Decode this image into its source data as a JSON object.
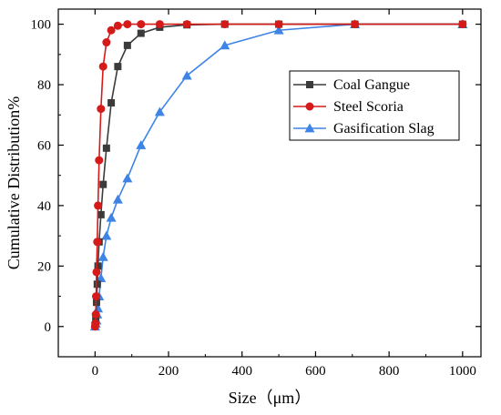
{
  "chart_data": {
    "type": "line",
    "title": "",
    "xlabel": "Size（μm）",
    "ylabel": "Cumulative Distribution%",
    "xlim": [
      -100,
      1050
    ],
    "ylim": [
      -10,
      105
    ],
    "xticks": [
      0,
      200,
      400,
      600,
      800,
      1000
    ],
    "yticks": [
      0,
      20,
      40,
      60,
      80,
      100
    ],
    "xtick_labels": [
      "0",
      "200",
      "400",
      "600",
      "800",
      "1000"
    ],
    "ytick_labels": [
      "0",
      "20",
      "40",
      "60",
      "80",
      "100"
    ],
    "grid": false,
    "legend": {
      "placement": "right",
      "entries": [
        "Coal Gangue",
        "Steel Scoria",
        "Gasification Slag"
      ]
    },
    "series": [
      {
        "name": "Coal Gangue",
        "color": "#3b3b3b",
        "marker": "square",
        "x": [
          0,
          2,
          4,
          6,
          8,
          11,
          16,
          22,
          31,
          44,
          62,
          88,
          125,
          176,
          250,
          353,
          500,
          707,
          1000
        ],
        "y": [
          0.5,
          3,
          8,
          14,
          20,
          28,
          37,
          47,
          59,
          74,
          86,
          93,
          97,
          99,
          99.8,
          100,
          100,
          100,
          100
        ]
      },
      {
        "name": "Steel Scoria",
        "color": "#d51a1a",
        "marker": "circle",
        "x": [
          0,
          1,
          2,
          3,
          4,
          6,
          8,
          11,
          16,
          22,
          31,
          44,
          62,
          88,
          125,
          176,
          250,
          353,
          500,
          707,
          1000
        ],
        "y": [
          0,
          1,
          4,
          10,
          18,
          28,
          40,
          55,
          72,
          86,
          94,
          98,
          99.5,
          100,
          100,
          100,
          100,
          100,
          100,
          100,
          100
        ]
      },
      {
        "name": "Gasification Slag",
        "color": "#3d84e6",
        "marker": "triangle",
        "x": [
          0,
          2,
          4,
          6,
          8,
          11,
          16,
          22,
          31,
          44,
          62,
          88,
          125,
          176,
          250,
          353,
          500,
          707,
          1000
        ],
        "y": [
          0,
          1,
          2,
          4,
          6,
          10,
          16,
          23,
          30,
          36,
          42,
          49,
          60,
          71,
          83,
          93,
          98,
          100,
          100
        ]
      }
    ]
  }
}
